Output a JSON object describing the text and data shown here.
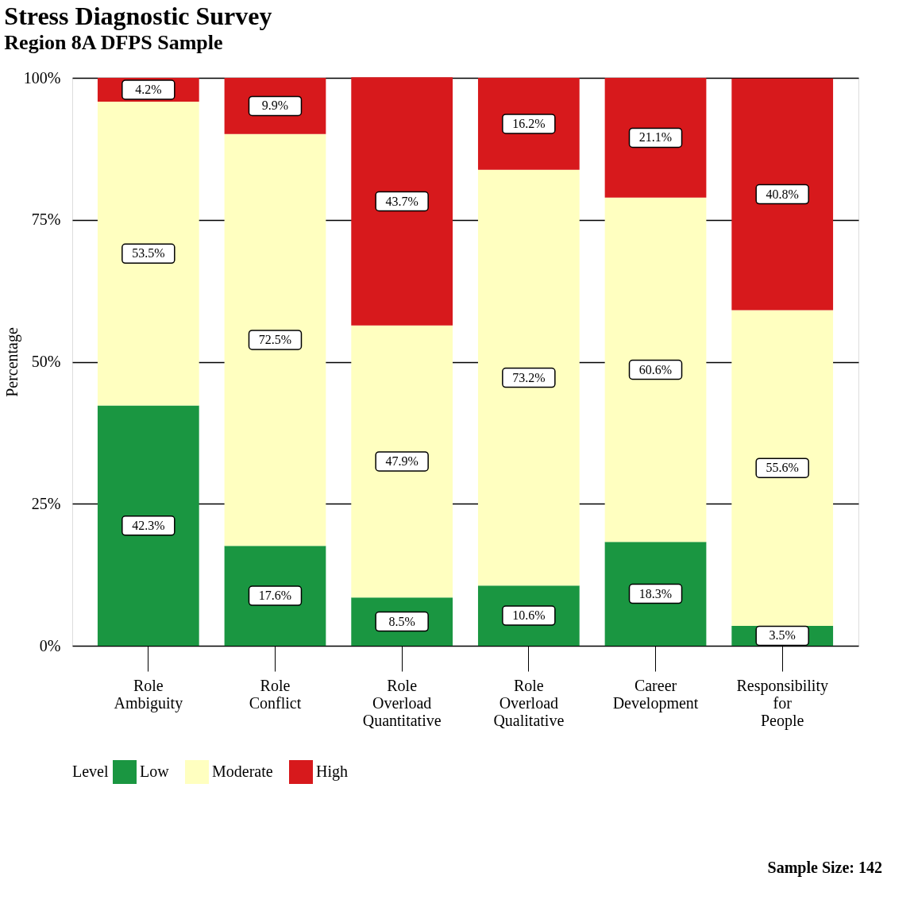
{
  "chart_data": {
    "type": "bar",
    "title": "Stress Diagnostic Survey",
    "subtitle": "Region 8A DFPS Sample",
    "ylabel": "Percentage",
    "legend_title": "Level",
    "categories": [
      "Role Ambiguity",
      "Role Conflict",
      "Role Overload Quantitative",
      "Role Overload Qualitative",
      "Career Development",
      "Responsibility for People"
    ],
    "stacked": true,
    "series": [
      {
        "name": "Low",
        "color": "#1a9641",
        "values": [
          42.3,
          17.6,
          8.5,
          10.6,
          18.3,
          3.5
        ],
        "value_labels": [
          "42.3%",
          "17.6%",
          "8.5%",
          "10.6%",
          "18.3%",
          "3.5%"
        ]
      },
      {
        "name": "Moderate",
        "color": "#ffffc0",
        "values": [
          53.5,
          72.5,
          47.9,
          73.2,
          60.6,
          55.6
        ],
        "value_labels": [
          "53.5%",
          "72.5%",
          "47.9%",
          "73.2%",
          "60.6%",
          "55.6%"
        ]
      },
      {
        "name": "High",
        "color": "#d7191c",
        "values": [
          4.2,
          9.9,
          43.7,
          16.2,
          21.1,
          40.8
        ],
        "value_labels": [
          "4.2%",
          "9.9%",
          "43.7%",
          "16.2%",
          "21.1%",
          "40.8%"
        ]
      }
    ],
    "ylim": [
      0,
      100
    ],
    "yticks": [
      {
        "value": 0,
        "label": "0%"
      },
      {
        "value": 25,
        "label": "25%"
      },
      {
        "value": 50,
        "label": "50%"
      },
      {
        "value": 75,
        "label": "75%"
      },
      {
        "value": 100,
        "label": "100%"
      }
    ],
    "grid": "y",
    "legend": "bottom",
    "annotations": [
      "Sample Size: 142"
    ]
  }
}
